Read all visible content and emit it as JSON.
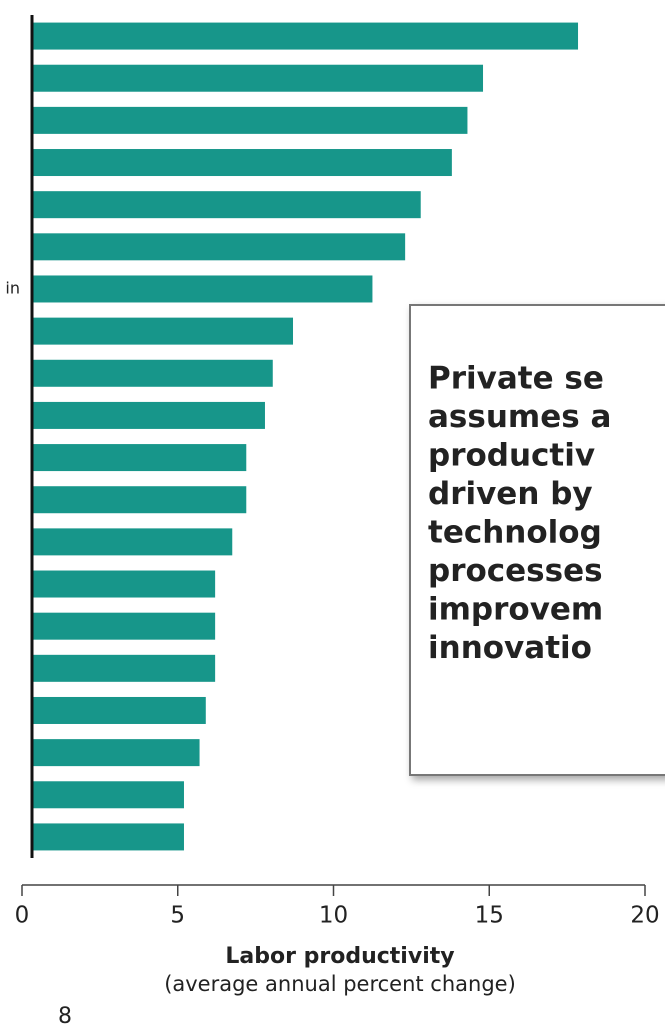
{
  "chart_data": {
    "type": "bar",
    "orientation": "horizontal",
    "categories": [
      null,
      null,
      null,
      null,
      null,
      null,
      "in",
      null,
      null,
      null,
      null,
      null,
      null,
      null,
      null,
      null,
      null,
      null,
      null,
      null
    ],
    "values": [
      17.85,
      14.8,
      14.3,
      13.8,
      12.8,
      12.3,
      11.25,
      8.7,
      8.05,
      7.8,
      7.2,
      7.2,
      6.75,
      6.2,
      6.2,
      6.2,
      5.9,
      5.7,
      5.2,
      5.2
    ],
    "color": "#17968a",
    "xlim": [
      0,
      20
    ],
    "xticks": [
      0,
      5,
      10,
      15,
      20
    ],
    "xlabel": "Labor productivity",
    "xlabel_sub": "(average annual percent change)",
    "annotation": {
      "lines": [
        "Private se",
        "assumes a",
        "productiv",
        "driven by",
        "technolog",
        "processes",
        "improvem",
        "innovatio"
      ]
    },
    "page_number": "8"
  }
}
